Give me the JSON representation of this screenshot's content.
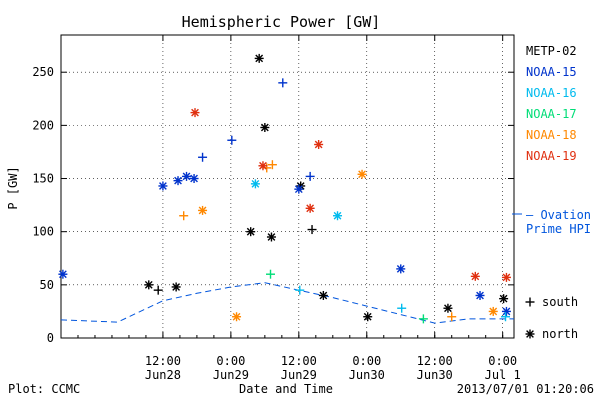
{
  "chart_data": {
    "type": "scatter",
    "title": "Hemispheric Power [GW]",
    "ylabel": "P [GW]",
    "xlabel": "Date and Time",
    "ylim": [
      0,
      285
    ],
    "yticks": [
      0,
      50,
      100,
      150,
      200,
      250
    ],
    "xlim": [
      "2013-06-27T18:00",
      "2013-07-01T02:00"
    ],
    "xticks": [
      {
        "time": "2013-06-28T12:00",
        "top": "12:00",
        "bottom": "Jun28"
      },
      {
        "time": "2013-06-29T00:00",
        "top": "0:00",
        "bottom": "Jun29"
      },
      {
        "time": "2013-06-29T12:00",
        "top": "12:00",
        "bottom": "Jun29"
      },
      {
        "time": "2013-06-30T00:00",
        "top": "0:00",
        "bottom": "Jun30"
      },
      {
        "time": "2013-06-30T12:00",
        "top": "12:00",
        "bottom": "Jun30"
      },
      {
        "time": "2013-07-01T00:00",
        "top": "0:00",
        "bottom": "Jul 1"
      }
    ],
    "legend": {
      "position": "right",
      "satellites": [
        {
          "name": "METP-02",
          "color": "#000000"
        },
        {
          "name": "NOAA-15",
          "color": "#0033cc"
        },
        {
          "name": "NOAA-16",
          "color": "#00bbee"
        },
        {
          "name": "NOAA-17",
          "color": "#00dd77"
        },
        {
          "name": "NOAA-18",
          "color": "#ff8800"
        },
        {
          "name": "NOAA-19",
          "color": "#e03010"
        }
      ],
      "model_lines": [
        "– Ovation",
        "Prime HPI"
      ],
      "model_color": "#0055dd",
      "symbols": [
        {
          "glyph": "+",
          "label": "south"
        },
        {
          "glyph": "*",
          "label": "north"
        }
      ]
    },
    "series": [
      {
        "name": "METP-02",
        "color": "#000000",
        "points": [
          [
            "2013-06-28T09:30",
            50,
            "*"
          ],
          [
            "2013-06-28T11:10",
            45,
            "+"
          ],
          [
            "2013-06-28T14:20",
            48,
            "*"
          ],
          [
            "2013-06-29T03:30",
            100,
            "*"
          ],
          [
            "2013-06-29T05:00",
            263,
            "*"
          ],
          [
            "2013-06-29T06:00",
            198,
            "*"
          ],
          [
            "2013-06-29T07:10",
            95,
            "*"
          ],
          [
            "2013-06-29T12:20",
            143,
            "*"
          ],
          [
            "2013-06-29T14:20",
            102,
            "+"
          ],
          [
            "2013-06-29T16:20",
            40,
            "*"
          ],
          [
            "2013-06-30T00:10",
            20,
            "*"
          ],
          [
            "2013-06-30T14:20",
            28,
            "*"
          ],
          [
            "2013-07-01T00:10",
            37,
            "*"
          ]
        ]
      },
      {
        "name": "NOAA-15",
        "color": "#0033cc",
        "points": [
          [
            "2013-06-27T18:20",
            60,
            "*"
          ],
          [
            "2013-06-28T12:00",
            143,
            "*"
          ],
          [
            "2013-06-28T14:40",
            148,
            "*"
          ],
          [
            "2013-06-28T16:10",
            152,
            "*"
          ],
          [
            "2013-06-28T17:30",
            150,
            "*"
          ],
          [
            "2013-06-28T19:00",
            170,
            "+"
          ],
          [
            "2013-06-29T00:10",
            186,
            "+"
          ],
          [
            "2013-06-29T09:10",
            240,
            "+"
          ],
          [
            "2013-06-29T14:00",
            152,
            "+"
          ],
          [
            "2013-06-29T12:00",
            140,
            "*"
          ],
          [
            "2013-06-30T06:00",
            65,
            "*"
          ],
          [
            "2013-06-30T20:00",
            40,
            "*"
          ],
          [
            "2013-07-01T00:40",
            25,
            "*"
          ]
        ]
      },
      {
        "name": "NOAA-16",
        "color": "#00bbee",
        "points": [
          [
            "2013-06-29T04:20",
            145,
            "*"
          ],
          [
            "2013-06-29T18:50",
            115,
            "*"
          ],
          [
            "2013-06-29T12:10",
            45,
            "+"
          ],
          [
            "2013-06-30T06:10",
            28,
            "+"
          ],
          [
            "2013-07-01T00:30",
            20,
            "+"
          ]
        ]
      },
      {
        "name": "NOAA-17",
        "color": "#00dd77",
        "points": [
          [
            "2013-06-29T07:00",
            60,
            "+"
          ],
          [
            "2013-06-30T10:00",
            18,
            "+"
          ]
        ]
      },
      {
        "name": "NOAA-18",
        "color": "#ff8800",
        "points": [
          [
            "2013-06-28T15:40",
            115,
            "+"
          ],
          [
            "2013-06-28T19:00",
            120,
            "*"
          ],
          [
            "2013-06-29T06:20",
            160,
            "+"
          ],
          [
            "2013-06-29T07:20",
            163,
            "+"
          ],
          [
            "2013-06-29T23:10",
            154,
            "*"
          ],
          [
            "2013-06-29T01:00",
            20,
            "*"
          ],
          [
            "2013-06-30T15:00",
            20,
            "+"
          ],
          [
            "2013-06-30T22:20",
            25,
            "*"
          ]
        ]
      },
      {
        "name": "NOAA-19",
        "color": "#e03010",
        "points": [
          [
            "2013-06-28T17:40",
            212,
            "*"
          ],
          [
            "2013-06-29T05:40",
            162,
            "*"
          ],
          [
            "2013-06-29T15:30",
            182,
            "*"
          ],
          [
            "2013-06-29T14:00",
            122,
            "*"
          ],
          [
            "2013-06-30T19:10",
            58,
            "*"
          ],
          [
            "2013-07-01T00:40",
            57,
            "*"
          ]
        ]
      }
    ],
    "model_dashed_line": [
      [
        "2013-06-27T18:00",
        17
      ],
      [
        "2013-06-28T04:00",
        15
      ],
      [
        "2013-06-28T08:00",
        25
      ],
      [
        "2013-06-28T12:00",
        35
      ],
      [
        "2013-06-28T18:00",
        42
      ],
      [
        "2013-06-29T00:00",
        48
      ],
      [
        "2013-06-29T06:00",
        52
      ],
      [
        "2013-06-29T12:00",
        45
      ],
      [
        "2013-06-29T18:00",
        38
      ],
      [
        "2013-06-30T00:00",
        30
      ],
      [
        "2013-06-30T06:00",
        22
      ],
      [
        "2013-06-30T12:00",
        14
      ],
      [
        "2013-06-30T18:00",
        18
      ],
      [
        "2013-07-01T00:00",
        18
      ],
      [
        "2013-07-01T02:00",
        18
      ]
    ]
  },
  "footer": {
    "plot_credit": "Plot: CCMC",
    "timestamp": "2013/07/01 01:20:06"
  }
}
